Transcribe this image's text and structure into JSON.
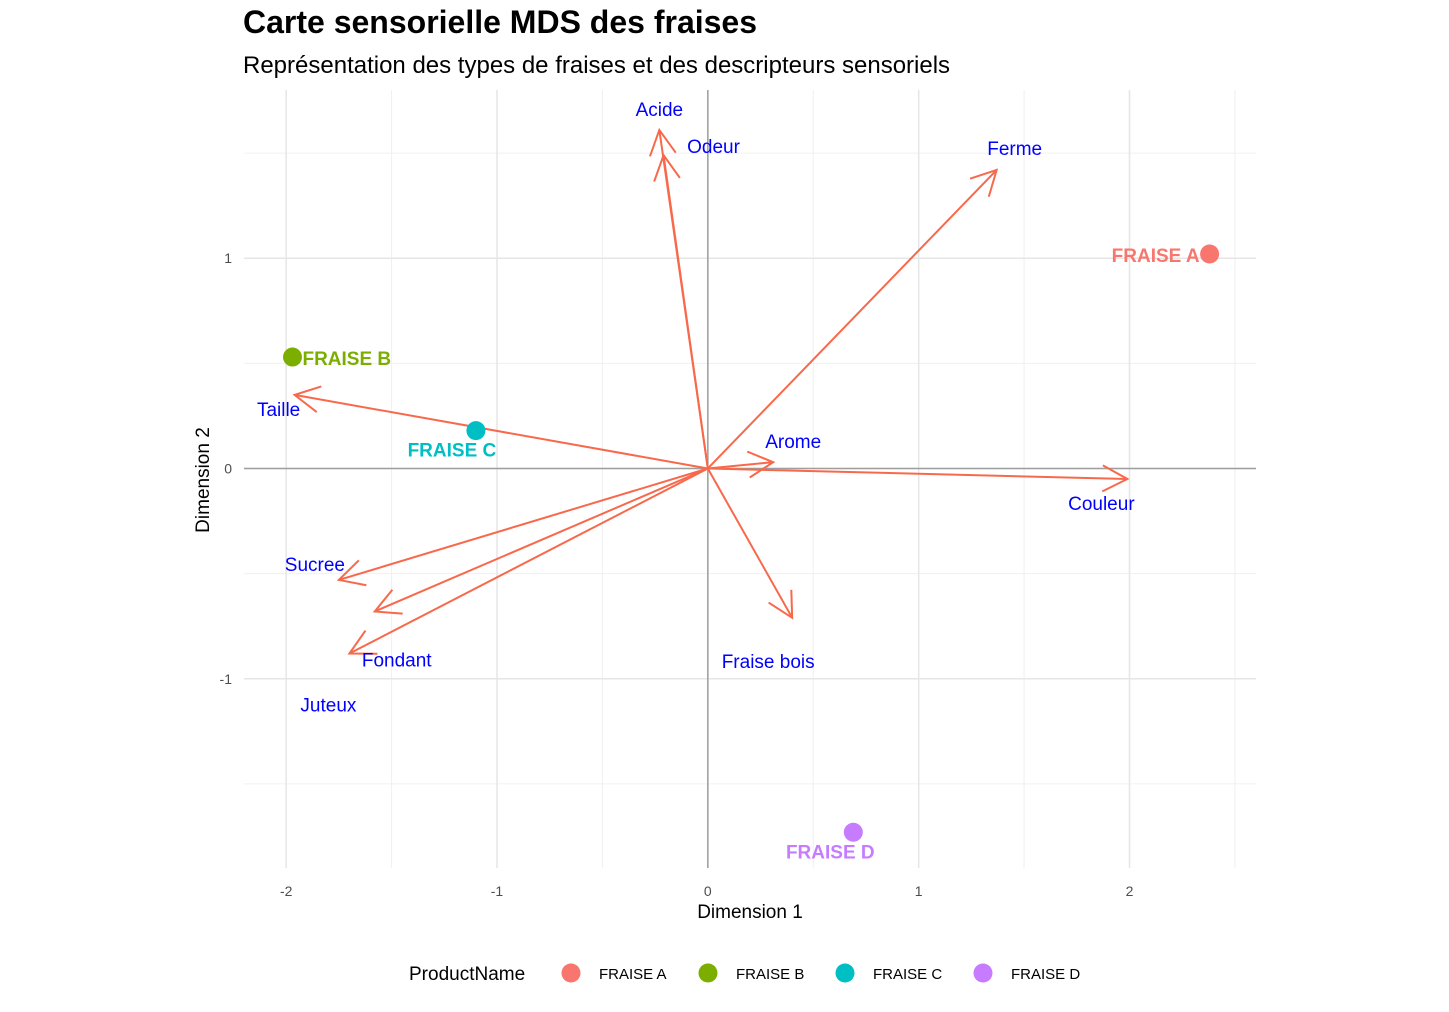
{
  "title": "Carte sensorielle MDS des fraises",
  "subtitle": "Représentation des types de fraises et des descripteurs sensoriels",
  "chart_data": {
    "type": "scatter",
    "title": "Carte sensorielle MDS des fraises",
    "subtitle": "Représentation des types de fraises et des descripteurs sensoriels",
    "xlabel": "Dimension 1",
    "ylabel": "Dimension 2",
    "xlim": [
      -2.2,
      2.6
    ],
    "ylim": [
      -1.9,
      1.8
    ],
    "x_ticks": [
      -2,
      -1,
      0,
      1,
      2
    ],
    "y_ticks": [
      -1,
      0,
      1
    ],
    "grid": true,
    "legend": {
      "title": "ProductName",
      "position": "bottom",
      "entries": [
        {
          "name": "FRAISE A",
          "color": "#F8766D"
        },
        {
          "name": "FRAISE B",
          "color": "#7CAE00"
        },
        {
          "name": "FRAISE C",
          "color": "#00BFC4"
        },
        {
          "name": "FRAISE D",
          "color": "#C77CFF"
        }
      ]
    },
    "products": [
      {
        "name": "FRAISE A",
        "x": 2.38,
        "y": 1.02,
        "color": "#F8766D"
      },
      {
        "name": "FRAISE B",
        "x": -1.97,
        "y": 0.53,
        "color": "#7CAE00"
      },
      {
        "name": "FRAISE C",
        "x": -1.1,
        "y": 0.18,
        "color": "#00BFC4"
      },
      {
        "name": "FRAISE D",
        "x": 0.69,
        "y": -1.73,
        "color": "#C77CFF"
      }
    ],
    "variables": [
      {
        "name": "Acide",
        "x": -0.23,
        "y": 1.61
      },
      {
        "name": "Odeur",
        "x": -0.21,
        "y": 1.49
      },
      {
        "name": "Ferme",
        "x": 1.37,
        "y": 1.42
      },
      {
        "name": "Taille",
        "x": -1.96,
        "y": 0.35
      },
      {
        "name": "Arome",
        "x": 0.31,
        "y": 0.03
      },
      {
        "name": "Couleur",
        "x": 1.99,
        "y": -0.05
      },
      {
        "name": "Fraise bois",
        "x": 0.4,
        "y": -0.71
      },
      {
        "name": "Sucree",
        "x": -1.75,
        "y": -0.53
      },
      {
        "name": "Fondant",
        "x": -1.58,
        "y": -0.68
      },
      {
        "name": "Juteux",
        "x": -1.7,
        "y": -0.88
      }
    ],
    "arrow_color": "#F8694B",
    "variable_label_color": "#0000FF"
  }
}
